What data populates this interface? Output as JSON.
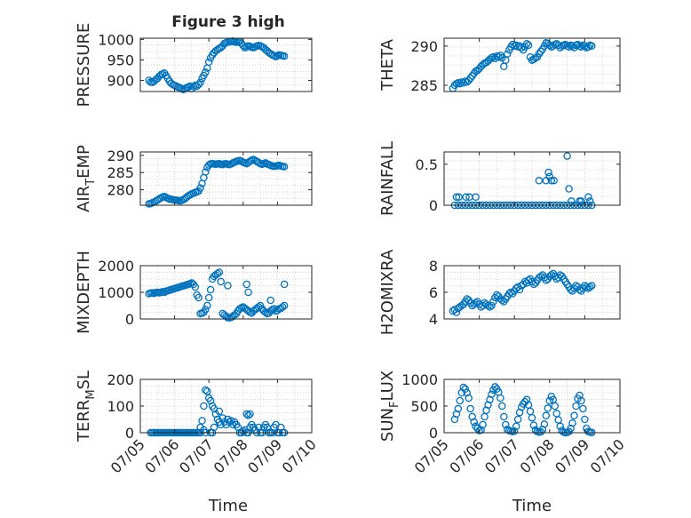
{
  "figure": {
    "title": "Figure 3 high",
    "xlabel": "Time",
    "x_ticks": [
      "07/05",
      "07/06",
      "07/07",
      "07/08",
      "07/09",
      "07/10"
    ],
    "marker_color": "#0072BD",
    "axis_color": "#262626",
    "grid_color": "#c8c8c8"
  },
  "chart_data": [
    {
      "type": "scatter",
      "ylabel": "PRESSURE",
      "xlim": [
        5,
        10
      ],
      "ylim": [
        873,
        1003
      ],
      "y_ticks": [
        "900",
        "950",
        "1000"
      ],
      "grid": true,
      "x": [
        5.25,
        5.3,
        5.35,
        5.4,
        5.45,
        5.5,
        5.55,
        5.6,
        5.65,
        5.7,
        5.75,
        5.8,
        5.85,
        5.9,
        5.95,
        6.0,
        6.05,
        6.1,
        6.15,
        6.2,
        6.25,
        6.3,
        6.35,
        6.4,
        6.45,
        6.5,
        6.55,
        6.6,
        6.65,
        6.7,
        6.75,
        6.8,
        6.85,
        6.9,
        6.95,
        7.0,
        7.05,
        7.1,
        7.15,
        7.2,
        7.25,
        7.3,
        7.35,
        7.4,
        7.45,
        7.5,
        7.55,
        7.6,
        7.65,
        7.7,
        7.75,
        7.8,
        7.85,
        7.9,
        7.95,
        8.0,
        8.05,
        8.1,
        8.15,
        8.2,
        8.25,
        8.3,
        8.35,
        8.4,
        8.45,
        8.5,
        8.55,
        8.6,
        8.65,
        8.7,
        8.75,
        8.8,
        8.85,
        8.9,
        8.95,
        9.0,
        9.05,
        9.1,
        9.15,
        9.2
      ],
      "y": [
        900,
        896,
        895,
        898,
        902,
        905,
        910,
        914,
        916,
        918,
        912,
        905,
        898,
        893,
        890,
        888,
        886,
        884,
        882,
        880,
        878,
        880,
        882,
        884,
        886,
        880,
        885,
        888,
        886,
        890,
        895,
        905,
        912,
        920,
        930,
        945,
        955,
        962,
        968,
        972,
        975,
        978,
        980,
        984,
        990,
        992,
        994,
        994,
        995,
        996,
        994,
        993,
        994,
        995,
        990,
        985,
        980,
        982,
        984,
        983,
        981,
        980,
        982,
        984,
        985,
        984,
        982,
        980,
        975,
        972,
        968,
        965,
        962,
        960,
        958,
        960,
        962,
        961,
        960,
        959
      ]
    },
    {
      "type": "scatter",
      "ylabel": "THETA",
      "xlim": [
        5,
        10
      ],
      "ylim": [
        284.2,
        291
      ],
      "y_ticks": [
        "285",
        "290"
      ],
      "grid": true,
      "x": [
        5.25,
        5.3,
        5.35,
        5.4,
        5.45,
        5.5,
        5.55,
        5.6,
        5.65,
        5.7,
        5.75,
        5.8,
        5.85,
        5.9,
        5.95,
        6.0,
        6.05,
        6.1,
        6.15,
        6.2,
        6.25,
        6.3,
        6.35,
        6.4,
        6.45,
        6.5,
        6.55,
        6.6,
        6.65,
        6.7,
        6.75,
        6.8,
        6.85,
        6.9,
        6.95,
        7.0,
        7.05,
        7.1,
        7.15,
        7.2,
        7.25,
        7.3,
        7.35,
        7.4,
        7.45,
        7.5,
        7.55,
        7.6,
        7.65,
        7.7,
        7.75,
        7.8,
        7.85,
        7.9,
        7.95,
        8.0,
        8.05,
        8.1,
        8.15,
        8.2,
        8.25,
        8.3,
        8.35,
        8.4,
        8.45,
        8.5,
        8.55,
        8.6,
        8.65,
        8.7,
        8.75,
        8.8,
        8.85,
        8.9,
        8.95,
        9.0,
        9.05,
        9.1,
        9.15,
        9.2
      ],
      "y": [
        284.6,
        285.0,
        285.2,
        285.3,
        285.2,
        285.4,
        285.3,
        285.5,
        285.4,
        285.6,
        285.9,
        286.2,
        286.5,
        286.8,
        286.9,
        287.1,
        287.4,
        287.6,
        287.8,
        287.9,
        288.1,
        288.3,
        288.5,
        288.6,
        288.4,
        288.7,
        288.6,
        288.8,
        288.5,
        287.4,
        288.2,
        289.0,
        289.5,
        289.9,
        290.2,
        290.0,
        290.1,
        289.9,
        290.0,
        289.8,
        289.5,
        289.9,
        290.3,
        290.1,
        288.6,
        288.2,
        288.3,
        288.5,
        288.6,
        289.0,
        289.3,
        289.6,
        290.0,
        290.4,
        290.3,
        290.1,
        289.9,
        290.0,
        290.2,
        290.3,
        290.1,
        289.8,
        290.0,
        290.1,
        290.2,
        290.0,
        289.9,
        290.1,
        290.0,
        289.8,
        290.1,
        290.2,
        290.0,
        289.9,
        290.1,
        290.0,
        289.8,
        289.9,
        290.1,
        290.0
      ]
    },
    {
      "type": "scatter",
      "ylabel": "AIR_TEMP",
      "xlim": [
        5,
        10
      ],
      "ylim": [
        275.5,
        291
      ],
      "y_ticks": [
        "280",
        "285",
        "290"
      ],
      "grid": true,
      "x": [
        5.25,
        5.3,
        5.35,
        5.4,
        5.45,
        5.5,
        5.55,
        5.6,
        5.65,
        5.7,
        5.75,
        5.8,
        5.85,
        5.9,
        5.95,
        6.0,
        6.05,
        6.1,
        6.15,
        6.2,
        6.25,
        6.3,
        6.35,
        6.4,
        6.45,
        6.5,
        6.55,
        6.6,
        6.65,
        6.7,
        6.75,
        6.8,
        6.85,
        6.9,
        6.95,
        7.0,
        7.05,
        7.1,
        7.15,
        7.2,
        7.25,
        7.3,
        7.35,
        7.4,
        7.45,
        7.5,
        7.55,
        7.6,
        7.65,
        7.7,
        7.75,
        7.8,
        7.85,
        7.9,
        7.95,
        8.0,
        8.05,
        8.1,
        8.15,
        8.2,
        8.25,
        8.3,
        8.35,
        8.4,
        8.45,
        8.5,
        8.55,
        8.6,
        8.65,
        8.7,
        8.75,
        8.8,
        8.85,
        8.9,
        8.95,
        9.0,
        9.05,
        9.1,
        9.15,
        9.2
      ],
      "y": [
        275.9,
        276.0,
        276.2,
        276.4,
        276.7,
        277.0,
        277.3,
        277.6,
        277.9,
        278.0,
        277.8,
        277.5,
        277.3,
        277.2,
        277.1,
        277.0,
        277.0,
        276.9,
        276.8,
        276.9,
        277.1,
        277.4,
        277.8,
        278.2,
        278.5,
        278.8,
        279.0,
        279.2,
        279.4,
        279.6,
        280.5,
        281.8,
        283.5,
        285.2,
        286.5,
        287.2,
        287.5,
        287.6,
        287.5,
        287.4,
        287.5,
        287.6,
        287.4,
        287.3,
        287.5,
        287.6,
        287.4,
        287.3,
        287.5,
        287.8,
        288.0,
        288.2,
        288.4,
        288.5,
        288.3,
        288.0,
        287.8,
        287.6,
        287.9,
        288.3,
        288.6,
        288.8,
        288.5,
        288.2,
        287.9,
        287.6,
        287.4,
        287.6,
        287.8,
        287.5,
        287.3,
        287.1,
        286.9,
        286.8,
        286.9,
        287.0,
        287.1,
        286.9,
        286.8,
        286.7
      ]
    },
    {
      "type": "scatter",
      "ylabel": "RAINFALL",
      "xlim": [
        5,
        10
      ],
      "ylim": [
        0,
        0.65
      ],
      "y_ticks": [
        "0",
        "0.5"
      ],
      "grid": true,
      "x": [
        5.3,
        5.4,
        5.5,
        5.6,
        5.7,
        5.8,
        5.9,
        6.0,
        6.1,
        6.2,
        6.3,
        6.4,
        6.5,
        6.6,
        6.7,
        6.8,
        6.9,
        7.0,
        7.1,
        7.2,
        7.3,
        7.4,
        7.5,
        7.6,
        7.7,
        7.8,
        7.9,
        8.0,
        8.1,
        8.2,
        8.3,
        8.4,
        8.5,
        8.6,
        8.7,
        8.8,
        8.9,
        9.0,
        9.1,
        9.2,
        5.35,
        5.42,
        5.62,
        5.72,
        5.9,
        7.7,
        7.9,
        7.97,
        8.0,
        8.05,
        8.12,
        8.5,
        8.55,
        8.62,
        8.85,
        8.9,
        9.1,
        9.15
      ],
      "y": [
        0,
        0,
        0,
        0,
        0,
        0,
        0,
        0,
        0,
        0,
        0,
        0,
        0,
        0,
        0,
        0,
        0,
        0,
        0,
        0,
        0,
        0,
        0,
        0,
        0,
        0,
        0,
        0,
        0,
        0,
        0,
        0,
        0,
        0,
        0,
        0,
        0,
        0,
        0,
        0,
        0.1,
        0.1,
        0.1,
        0.1,
        0.1,
        0.3,
        0.3,
        0.4,
        0.35,
        0.3,
        0.3,
        0.6,
        0.2,
        0.05,
        0.05,
        0.05,
        0.1,
        0.05
      ]
    },
    {
      "type": "scatter",
      "ylabel": "MIXDEPTH",
      "xlim": [
        5,
        10
      ],
      "ylim": [
        0,
        2000
      ],
      "y_ticks": [
        "0",
        "1000",
        "2000"
      ],
      "grid": true,
      "x": [
        5.25,
        5.3,
        5.35,
        5.4,
        5.45,
        5.5,
        5.55,
        5.6,
        5.65,
        5.7,
        5.75,
        5.8,
        5.85,
        5.9,
        5.95,
        6.0,
        6.05,
        6.1,
        6.15,
        6.2,
        6.25,
        6.3,
        6.35,
        6.4,
        6.45,
        6.5,
        6.55,
        6.6,
        6.65,
        6.7,
        6.75,
        6.8,
        6.85,
        6.9,
        6.95,
        7.0,
        7.05,
        7.1,
        7.15,
        7.2,
        7.25,
        7.3,
        7.35,
        7.4,
        7.45,
        7.5,
        7.55,
        7.6,
        7.65,
        7.7,
        7.75,
        7.8,
        7.85,
        7.9,
        7.95,
        8.0,
        8.05,
        8.1,
        8.15,
        8.2,
        8.25,
        8.3,
        8.35,
        8.4,
        8.45,
        8.5,
        8.55,
        8.6,
        8.65,
        8.7,
        8.75,
        8.8,
        8.85,
        8.9,
        8.95,
        9.0,
        9.05,
        9.1,
        9.15,
        9.2,
        7.55,
        8.1,
        8.15,
        8.8,
        9.2
      ],
      "y": [
        950,
        970,
        980,
        960,
        990,
        1000,
        980,
        1000,
        1020,
        1000,
        1040,
        1060,
        1080,
        1100,
        1120,
        1140,
        1160,
        1180,
        1200,
        1220,
        1240,
        1260,
        1280,
        1300,
        1320,
        1350,
        1300,
        1200,
        900,
        800,
        200,
        220,
        250,
        350,
        500,
        800,
        1100,
        1500,
        1600,
        1650,
        1700,
        1750,
        1400,
        200,
        150,
        100,
        50,
        40,
        60,
        100,
        150,
        200,
        300,
        380,
        420,
        450,
        400,
        350,
        300,
        250,
        220,
        300,
        350,
        400,
        450,
        500,
        380,
        300,
        250,
        200,
        220,
        300,
        350,
        380,
        300,
        320,
        380,
        400,
        450,
        500,
        1250,
        1300,
        1000,
        700,
        1300
      ]
    },
    {
      "type": "scatter",
      "ylabel": "H2OMIXRA",
      "xlim": [
        5,
        10
      ],
      "ylim": [
        4,
        8
      ],
      "y_ticks": [
        "4",
        "6",
        "8"
      ],
      "grid": true,
      "x": [
        5.25,
        5.3,
        5.35,
        5.4,
        5.45,
        5.5,
        5.55,
        5.6,
        5.65,
        5.7,
        5.75,
        5.8,
        5.85,
        5.9,
        5.95,
        6.0,
        6.05,
        6.1,
        6.15,
        6.2,
        6.25,
        6.3,
        6.35,
        6.4,
        6.45,
        6.5,
        6.55,
        6.6,
        6.65,
        6.7,
        6.75,
        6.8,
        6.85,
        6.9,
        6.95,
        7.0,
        7.05,
        7.1,
        7.15,
        7.2,
        7.25,
        7.3,
        7.35,
        7.4,
        7.45,
        7.5,
        7.55,
        7.6,
        7.65,
        7.7,
        7.75,
        7.8,
        7.85,
        7.9,
        7.95,
        8.0,
        8.05,
        8.1,
        8.15,
        8.2,
        8.25,
        8.3,
        8.35,
        8.4,
        8.45,
        8.5,
        8.55,
        8.6,
        8.65,
        8.7,
        8.75,
        8.8,
        8.85,
        8.9,
        8.95,
        9.0,
        9.05,
        9.1,
        9.15,
        9.2
      ],
      "y": [
        4.6,
        4.7,
        4.5,
        4.8,
        4.9,
        5.0,
        5.1,
        5.3,
        5.5,
        5.4,
        5.2,
        5.0,
        5.1,
        5.2,
        5.3,
        5.1,
        4.9,
        5.0,
        5.2,
        5.1,
        5.0,
        4.9,
        5.0,
        5.3,
        5.6,
        5.8,
        5.7,
        5.5,
        5.4,
        5.3,
        5.5,
        5.7,
        5.9,
        6.0,
        5.9,
        6.1,
        6.3,
        6.4,
        6.2,
        6.5,
        6.6,
        6.8,
        6.7,
        6.9,
        7.0,
        6.8,
        6.6,
        6.7,
        6.9,
        7.1,
        7.2,
        7.3,
        7.1,
        6.9,
        7.0,
        7.2,
        7.3,
        7.4,
        7.2,
        7.0,
        7.1,
        7.3,
        7.2,
        7.0,
        6.8,
        6.6,
        6.4,
        6.2,
        6.1,
        6.3,
        6.5,
        6.4,
        6.2,
        6.1,
        6.3,
        6.5,
        6.4,
        6.3,
        6.4,
        6.5
      ]
    },
    {
      "type": "scatter",
      "ylabel": "TERR_MSL",
      "xlim": [
        5,
        10
      ],
      "ylim": [
        0,
        200
      ],
      "y_ticks": [
        "0",
        "100",
        "200"
      ],
      "grid": true,
      "x": [
        5.3,
        5.35,
        5.4,
        5.45,
        5.5,
        5.55,
        5.6,
        5.65,
        5.7,
        5.75,
        5.8,
        5.85,
        5.9,
        5.95,
        6.0,
        6.05,
        6.1,
        6.15,
        6.2,
        6.25,
        6.3,
        6.35,
        6.4,
        6.45,
        6.5,
        6.55,
        6.6,
        6.65,
        6.7,
        6.75,
        6.8,
        6.85,
        6.9,
        6.95,
        7.0,
        7.05,
        7.1,
        7.15,
        7.2,
        7.25,
        7.3,
        7.35,
        7.4,
        7.45,
        7.5,
        7.55,
        7.6,
        7.65,
        7.7,
        7.75,
        7.8,
        7.85,
        7.9,
        7.95,
        8.0,
        8.05,
        8.1,
        8.15,
        8.2,
        8.25,
        8.3,
        8.35,
        8.4,
        8.45,
        8.5,
        8.55,
        8.6,
        8.65,
        8.7,
        8.75,
        8.8,
        8.85,
        8.9,
        8.95,
        9.0,
        9.05,
        9.1,
        9.15,
        9.2,
        6.75,
        6.85,
        6.9,
        7.05,
        7.1,
        8.1,
        8.15,
        8.2,
        7.15,
        7.3
      ],
      "y": [
        0,
        0,
        0,
        0,
        0,
        0,
        0,
        0,
        0,
        0,
        0,
        0,
        0,
        0,
        0,
        0,
        0,
        0,
        0,
        0,
        0,
        0,
        0,
        0,
        0,
        0,
        0,
        0,
        0,
        20,
        45,
        100,
        160,
        155,
        130,
        120,
        100,
        90,
        70,
        50,
        40,
        30,
        55,
        40,
        30,
        50,
        40,
        45,
        30,
        40,
        30,
        20,
        0,
        0,
        5,
        10,
        0,
        0,
        20,
        30,
        20,
        10,
        0,
        20,
        0,
        0,
        20,
        30,
        20,
        0,
        0,
        0,
        20,
        30,
        0,
        0,
        20,
        0,
        0,
        0,
        10,
        0,
        0,
        0,
        70,
        65,
        70,
        20,
        80
      ]
    },
    {
      "type": "scatter",
      "ylabel": "SUN_FLUX",
      "xlim": [
        5,
        10
      ],
      "ylim": [
        0,
        1000
      ],
      "y_ticks": [
        "0",
        "500",
        "1000"
      ],
      "grid": true,
      "x": [
        5.3,
        5.35,
        5.4,
        5.45,
        5.5,
        5.55,
        5.6,
        5.65,
        5.7,
        5.75,
        5.8,
        5.85,
        5.9,
        5.95,
        6.0,
        6.05,
        6.1,
        6.15,
        6.2,
        6.25,
        6.3,
        6.35,
        6.4,
        6.45,
        6.5,
        6.55,
        6.6,
        6.65,
        6.7,
        6.75,
        6.8,
        6.85,
        6.9,
        6.95,
        7.0,
        7.05,
        7.1,
        7.15,
        7.2,
        7.25,
        7.3,
        7.35,
        7.4,
        7.45,
        7.5,
        7.55,
        7.6,
        7.65,
        7.7,
        7.75,
        7.8,
        7.85,
        7.9,
        7.95,
        8.0,
        8.05,
        8.1,
        8.15,
        8.2,
        8.25,
        8.3,
        8.35,
        8.4,
        8.45,
        8.5,
        8.55,
        8.6,
        8.65,
        8.7,
        8.75,
        8.8,
        8.85,
        8.9,
        8.95,
        9.0,
        9.05,
        9.1,
        9.15,
        9.2
      ],
      "y": [
        250,
        350,
        450,
        600,
        750,
        850,
        820,
        750,
        650,
        450,
        300,
        200,
        120,
        80,
        40,
        50,
        150,
        300,
        420,
        520,
        620,
        720,
        800,
        860,
        820,
        760,
        650,
        500,
        300,
        150,
        60,
        40,
        30,
        20,
        30,
        120,
        250,
        380,
        480,
        540,
        580,
        620,
        520,
        400,
        280,
        140,
        50,
        20,
        10,
        15,
        60,
        160,
        320,
        460,
        600,
        680,
        620,
        500,
        360,
        240,
        120,
        40,
        10,
        0,
        5,
        20,
        80,
        180,
        320,
        500,
        640,
        700,
        600,
        450,
        250,
        80,
        20,
        10,
        5
      ]
    }
  ]
}
